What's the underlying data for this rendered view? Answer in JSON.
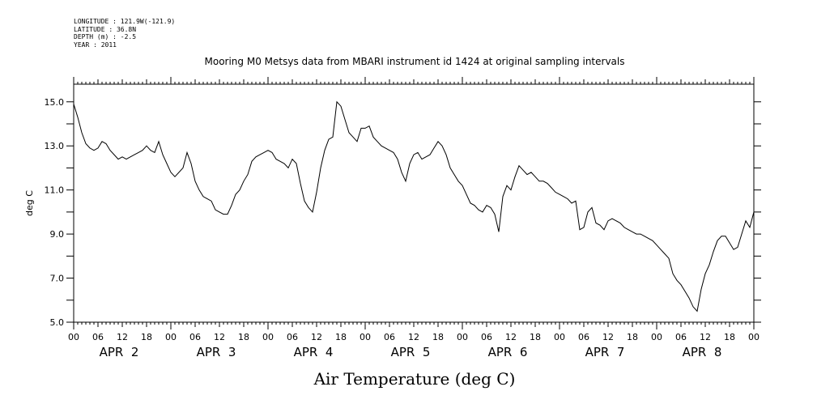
{
  "header": {
    "longitude": "LONGITUDE : 121.9W(-121.9)",
    "latitude": "LATITUDE : 36.8N",
    "depth": "DEPTH (m) : -2.5",
    "year": "YEAR : 2011"
  },
  "chart_data": {
    "type": "line",
    "title": "Mooring M0 Metsys data from MBARI instrument id 1424 at original sampling intervals",
    "xlabel": "Air Temperature (deg C)",
    "ylabel": "deg C",
    "ylim": [
      5.0,
      15.8
    ],
    "yticks": [
      "5.0",
      "7.0",
      "9.0",
      "11.0",
      "13.0",
      "15.0"
    ],
    "xlim_hours": [
      0,
      168
    ],
    "hour_tick_labels": [
      "00",
      "06",
      "12",
      "18",
      "00",
      "06",
      "12",
      "18",
      "00",
      "06",
      "12",
      "18",
      "00",
      "06",
      "12",
      "18",
      "00",
      "06",
      "12",
      "18",
      "00",
      "06",
      "12",
      "18",
      "00",
      "06",
      "12",
      "18",
      "00"
    ],
    "day_labels": [
      "APR  2",
      "APR  3",
      "APR  4",
      "APR  5",
      "APR  6",
      "APR  7",
      "APR  8"
    ],
    "grid": false,
    "series": [
      {
        "x": [
          0,
          1,
          2,
          3,
          4,
          5,
          6,
          7,
          8,
          9,
          10,
          11,
          12,
          13,
          14,
          15,
          16,
          17,
          18,
          19,
          20,
          21,
          22,
          23,
          24,
          25,
          26,
          27,
          28,
          29,
          30,
          31,
          32,
          33,
          34,
          35,
          36,
          37,
          38,
          39,
          40,
          41,
          42,
          43,
          44,
          45,
          46,
          47,
          48,
          49,
          50,
          51,
          52,
          53,
          54,
          55,
          56,
          57,
          58,
          59,
          60,
          61,
          62,
          63,
          64,
          65,
          66,
          67,
          68,
          69,
          70,
          71,
          72,
          73,
          74,
          75,
          76,
          77,
          78,
          79,
          80,
          81,
          82,
          83,
          84,
          85,
          86,
          87,
          88,
          89,
          90,
          91,
          92,
          93,
          94,
          95,
          96,
          97,
          98,
          99,
          100,
          101,
          102,
          103,
          104,
          105,
          106,
          107,
          108,
          109,
          110,
          111,
          112,
          113,
          114,
          115,
          116,
          117,
          118,
          119,
          120,
          121,
          122,
          123,
          124,
          125,
          126,
          127,
          128,
          129,
          130,
          131,
          132,
          133,
          134,
          135,
          136,
          137,
          138,
          139,
          140,
          141,
          142,
          143,
          144,
          145,
          146,
          147,
          148,
          149,
          150,
          151,
          152,
          153,
          154,
          155,
          156,
          157,
          158,
          159,
          160,
          161,
          162,
          163,
          164,
          165,
          166,
          167,
          168
        ],
        "y": [
          14.9,
          14.3,
          13.6,
          13.1,
          12.9,
          12.8,
          12.9,
          13.2,
          13.1,
          12.8,
          12.6,
          12.4,
          12.5,
          12.4,
          12.5,
          12.6,
          12.7,
          12.8,
          13.0,
          12.8,
          12.7,
          13.2,
          12.6,
          12.2,
          11.8,
          11.6,
          11.8,
          12.0,
          12.7,
          12.2,
          11.4,
          11.0,
          10.7,
          10.6,
          10.5,
          10.1,
          10.0,
          9.9,
          9.9,
          10.3,
          10.8,
          11.0,
          11.4,
          11.7,
          12.3,
          12.5,
          12.6,
          12.7,
          12.8,
          12.7,
          12.4,
          12.3,
          12.2,
          12.0,
          12.4,
          12.2,
          11.3,
          10.5,
          10.2,
          10.0,
          10.9,
          12.0,
          12.8,
          13.3,
          13.4,
          15.0,
          14.8,
          14.2,
          13.6,
          13.4,
          13.2,
          13.8,
          13.8,
          13.9,
          13.4,
          13.2,
          13.0,
          12.9,
          12.8,
          12.7,
          12.4,
          11.8,
          11.4,
          12.2,
          12.6,
          12.7,
          12.4,
          12.5,
          12.6,
          12.9,
          13.2,
          13.0,
          12.6,
          12.0,
          11.7,
          11.4,
          11.2,
          10.8,
          10.4,
          10.3,
          10.1,
          10.0,
          10.3,
          10.2,
          9.9,
          9.1,
          10.7,
          11.2,
          11.0,
          11.6,
          12.1,
          11.9,
          11.7,
          11.8,
          11.6,
          11.4,
          11.4,
          11.3,
          11.1,
          10.9,
          10.8,
          10.7,
          10.6,
          10.4,
          10.5,
          9.2,
          9.3,
          10.0,
          10.2,
          9.5,
          9.4,
          9.2,
          9.6,
          9.7,
          9.6,
          9.5,
          9.3,
          9.2,
          9.1,
          9.0,
          9.0,
          8.9,
          8.8,
          8.7,
          8.5,
          8.3,
          8.1,
          7.9,
          7.2,
          6.9,
          6.7,
          6.4,
          6.1,
          5.7,
          5.5,
          6.5,
          7.2,
          7.6,
          8.2,
          8.7,
          8.9,
          8.9,
          8.6,
          8.3,
          8.4,
          9.0,
          9.6,
          9.3,
          10.0
        ]
      }
    ]
  }
}
